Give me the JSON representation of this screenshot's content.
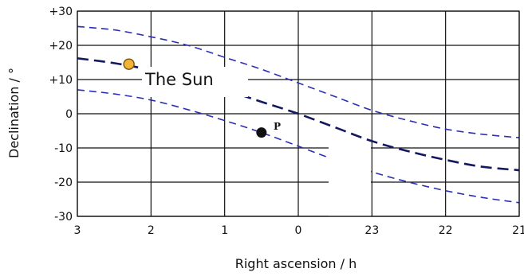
{
  "chart_data": {
    "type": "line",
    "title": "",
    "xlabel": "Right ascension / h",
    "ylabel": "Declination / °",
    "xlim": [
      3,
      21
    ],
    "ylim": [
      -30,
      30
    ],
    "x_reversed": true,
    "x_wraps_at_24h": true,
    "xticks": [
      3,
      2,
      1,
      0,
      23,
      22,
      21
    ],
    "xtick_labels": [
      "3",
      "2",
      "1",
      "0",
      "23",
      "22",
      "21"
    ],
    "yticks": [
      30,
      20,
      10,
      0,
      -10,
      -20,
      -30
    ],
    "ytick_labels": [
      "+30",
      "+20",
      "+10",
      "0",
      "-10",
      "-20",
      "-30"
    ],
    "grid": true,
    "line_style": "dashed",
    "colors": {
      "outer_curves": "#2b2fb0",
      "middle_curve": "#14185e",
      "grid": "#111111",
      "sun_fill": "#f0b43c",
      "sun_stroke": "#7a5200",
      "point_fill": "#111111"
    },
    "series": [
      {
        "role": "upper-limit",
        "x": [
          3,
          2.5,
          2,
          1.5,
          1,
          0.5,
          0,
          23.5,
          23,
          22.5,
          22,
          21.5,
          21
        ],
        "y": [
          25.5,
          24.5,
          22.5,
          20,
          16.5,
          13,
          9,
          5,
          1,
          -2,
          -4.5,
          -6,
          -7
        ]
      },
      {
        "role": "ecliptic",
        "x": [
          3,
          2.5,
          2,
          1.5,
          1,
          0.5,
          0,
          23.5,
          23,
          22.5,
          22,
          21.5,
          21
        ],
        "y": [
          16.2,
          14.8,
          12.8,
          10.2,
          7,
          3.5,
          0,
          -4,
          -8,
          -11,
          -13.5,
          -15.5,
          -16.5
        ]
      },
      {
        "role": "lower-limit",
        "x": [
          3,
          2.5,
          2,
          1.5,
          1,
          0.5,
          0,
          23.5,
          23,
          22.5,
          22,
          21.5,
          21
        ],
        "y": [
          7,
          5.8,
          4,
          1.2,
          -2,
          -5.5,
          -9.5,
          -13.5,
          -17,
          -20,
          -22.5,
          -24.5,
          -26
        ]
      }
    ],
    "annotations": [
      {
        "name": "sun",
        "label": "The Sun",
        "x": 2.3,
        "y": 14.5
      },
      {
        "name": "point-p",
        "label": "P",
        "x": 0.5,
        "y": -5.5
      }
    ]
  }
}
